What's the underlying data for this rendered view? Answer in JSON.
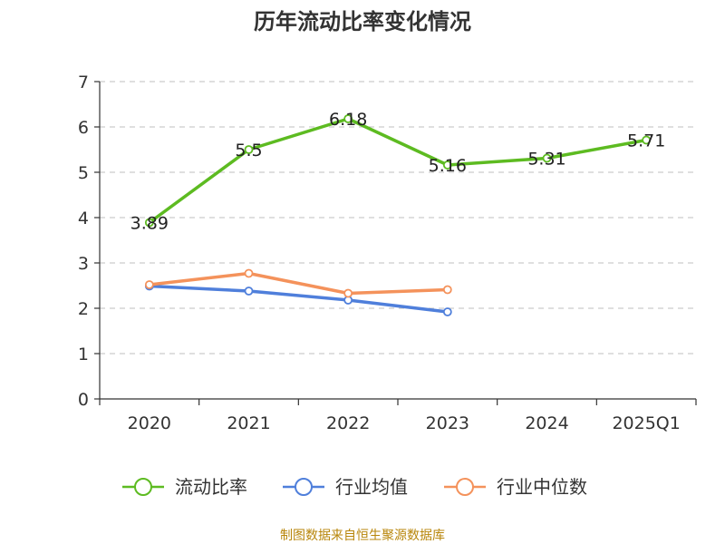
{
  "chart_title": "历年流动比率变化情况",
  "source_text": "制图数据来自恒生聚源数据库",
  "chart_data": {
    "type": "line",
    "title": "历年流动比率变化情况",
    "categories": [
      "2020",
      "2021",
      "2022",
      "2023",
      "2024",
      "2025Q1"
    ],
    "ylim": [
      0,
      7
    ],
    "yticks": [
      "0",
      "1",
      "2",
      "3",
      "4",
      "5",
      "6",
      "7"
    ],
    "grid": true,
    "legend_position": "bottom",
    "series": [
      {
        "name": "流动比率",
        "color": "#5dbb21",
        "values": [
          3.89,
          5.5,
          6.18,
          5.16,
          5.31,
          5.71
        ],
        "labels": [
          "3.89",
          "5.5",
          "6.18",
          "5.16",
          "5.31",
          "5.71"
        ]
      },
      {
        "name": "行业均值",
        "color": "#4f7fdb",
        "values": [
          2.49,
          2.38,
          2.18,
          1.92,
          null,
          null
        ]
      },
      {
        "name": "行业中位数",
        "color": "#f4925b",
        "values": [
          2.52,
          2.77,
          2.33,
          2.41,
          null,
          null
        ]
      }
    ]
  }
}
